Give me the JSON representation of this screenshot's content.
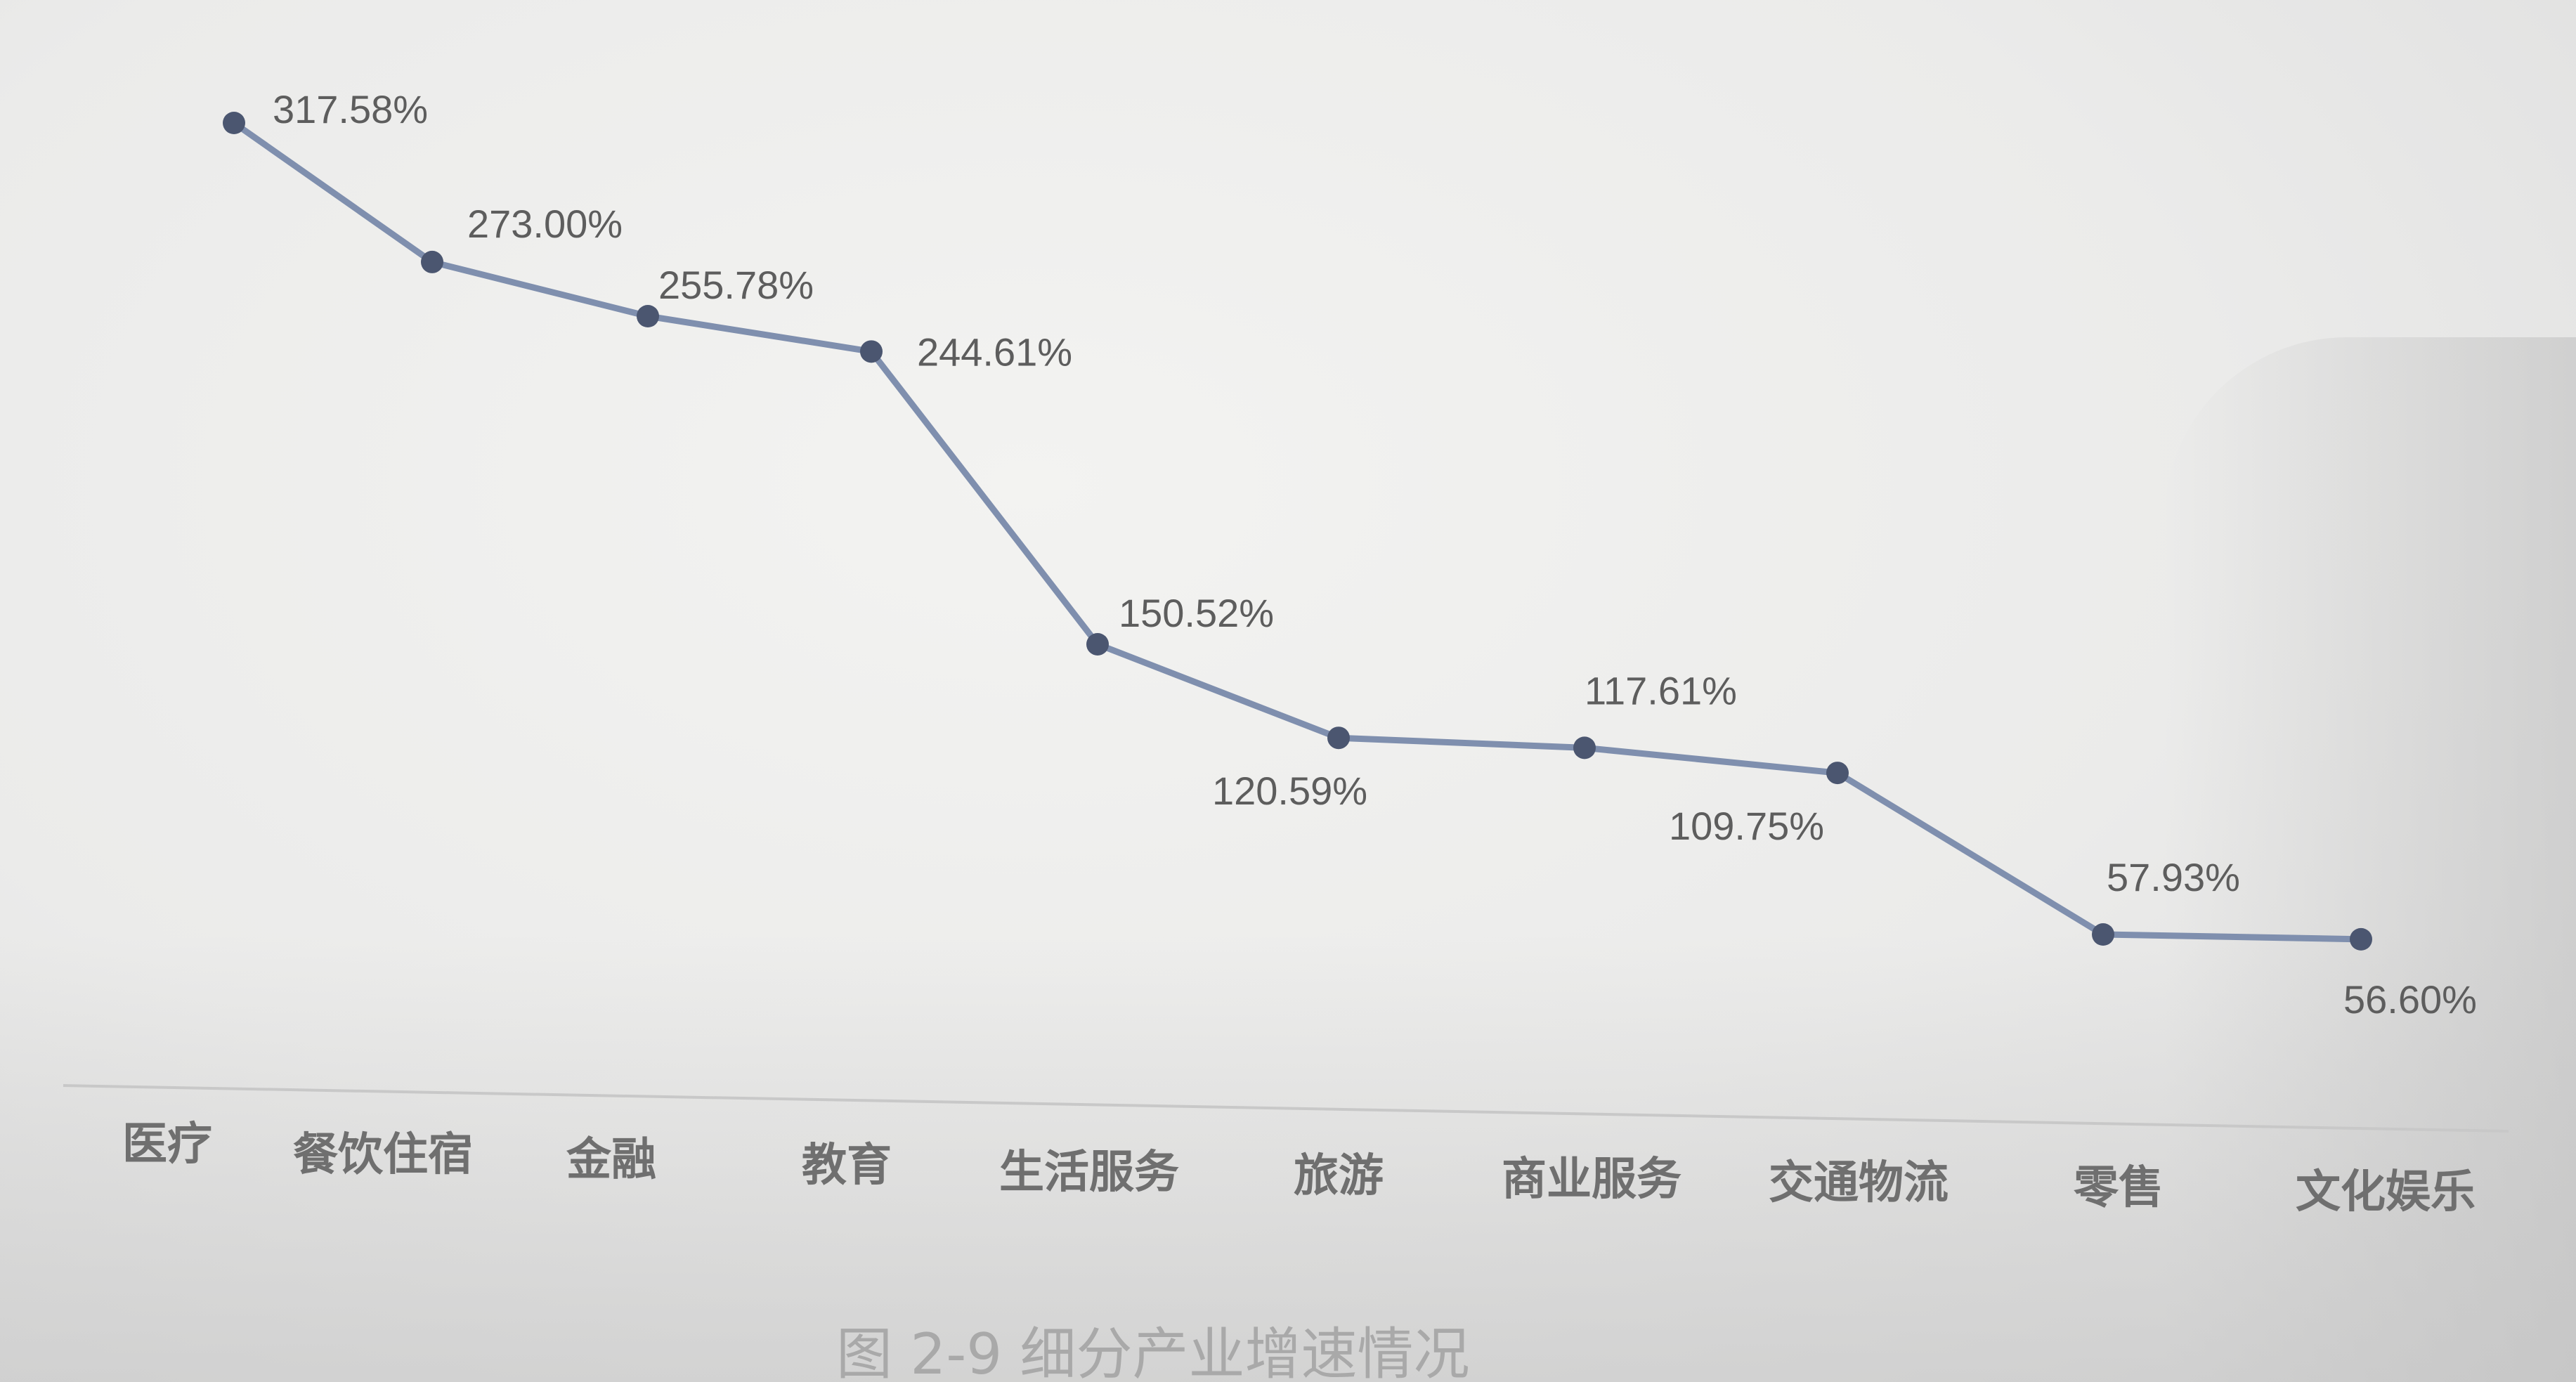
{
  "chart_data": {
    "type": "line",
    "title": "图 2-9 细分产业增速情况",
    "categories": [
      "医疗",
      "餐饮住宿",
      "金融",
      "教育",
      "生活服务",
      "旅游",
      "商业服务",
      "交通物流",
      "零售",
      "文化娱乐"
    ],
    "values": [
      317.58,
      273.0,
      255.78,
      244.61,
      150.52,
      120.59,
      117.61,
      109.75,
      57.93,
      56.6
    ],
    "value_labels": [
      "317.58%",
      "273.00%",
      "255.78%",
      "244.61%",
      "150.52%",
      "120.59%",
      "117.61%",
      "109.75%",
      "57.93%",
      "56.60%"
    ],
    "series_color": "#7f8fae",
    "point_color": "#4b5670",
    "grid": false,
    "legend": "none"
  }
}
